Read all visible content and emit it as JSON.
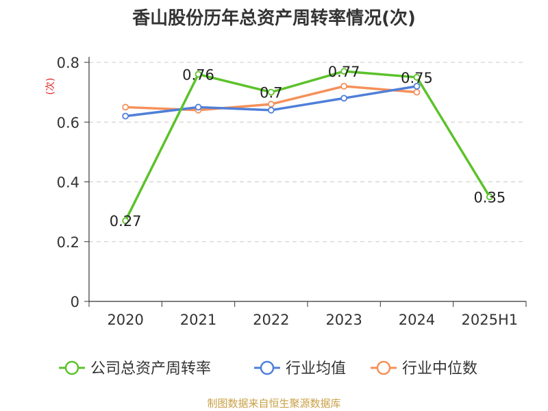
{
  "chart_data": {
    "type": "line",
    "title": "香山股份历年总资产周转率情况(次)",
    "ylabel": "(次)",
    "xlabel": "",
    "categories": [
      "2020",
      "2021",
      "2022",
      "2023",
      "2024",
      "2025H1"
    ],
    "ylim": [
      0,
      0.8
    ],
    "yticks": [
      "0",
      "0.2",
      "0.4",
      "0.6",
      "0.8"
    ],
    "grid": true,
    "legend_position": "bottom",
    "series": [
      {
        "name": "公司总资产周转率",
        "color": "#5bc22a",
        "values": [
          0.27,
          0.76,
          0.7,
          0.77,
          0.75,
          0.35
        ],
        "labels": [
          "0.27",
          "0.76",
          "0.7",
          "0.77",
          "0.75",
          "0.35"
        ]
      },
      {
        "name": "行业均值",
        "color": "#4f7fd8",
        "values": [
          0.62,
          0.65,
          0.64,
          0.68,
          0.72,
          null
        ]
      },
      {
        "name": "行业中位数",
        "color": "#f59059",
        "values": [
          0.65,
          0.64,
          0.66,
          0.72,
          0.7,
          null
        ]
      }
    ]
  },
  "source": "制图数据来自恒生聚源数据库"
}
